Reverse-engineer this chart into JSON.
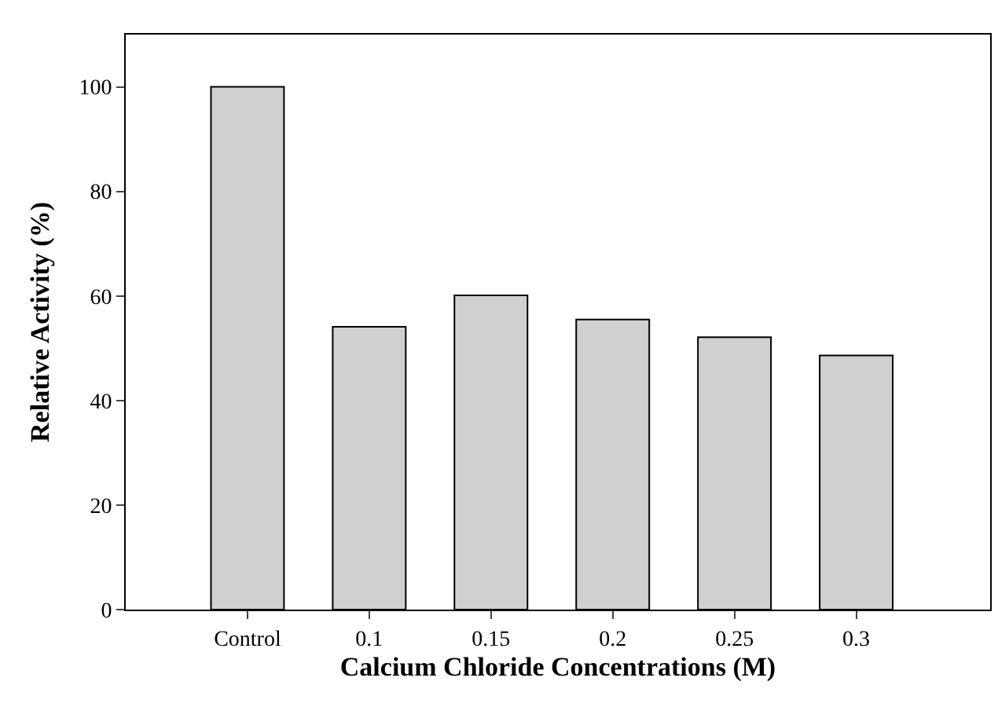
{
  "chart_data": {
    "type": "bar",
    "xlabel": "Calcium Chloride Concentrations (M)",
    "ylabel": "Relative Activity (%)",
    "categories": [
      "Control",
      "0.1",
      "0.15",
      "0.2",
      "0.25",
      "0.3"
    ],
    "values": [
      100,
      54.1,
      60.1,
      55.5,
      52.1,
      48.6
    ],
    "color": "#d0d0d0",
    "ylim": [
      0,
      110
    ],
    "yticks": [
      0,
      20,
      40,
      60,
      80,
      100
    ]
  }
}
